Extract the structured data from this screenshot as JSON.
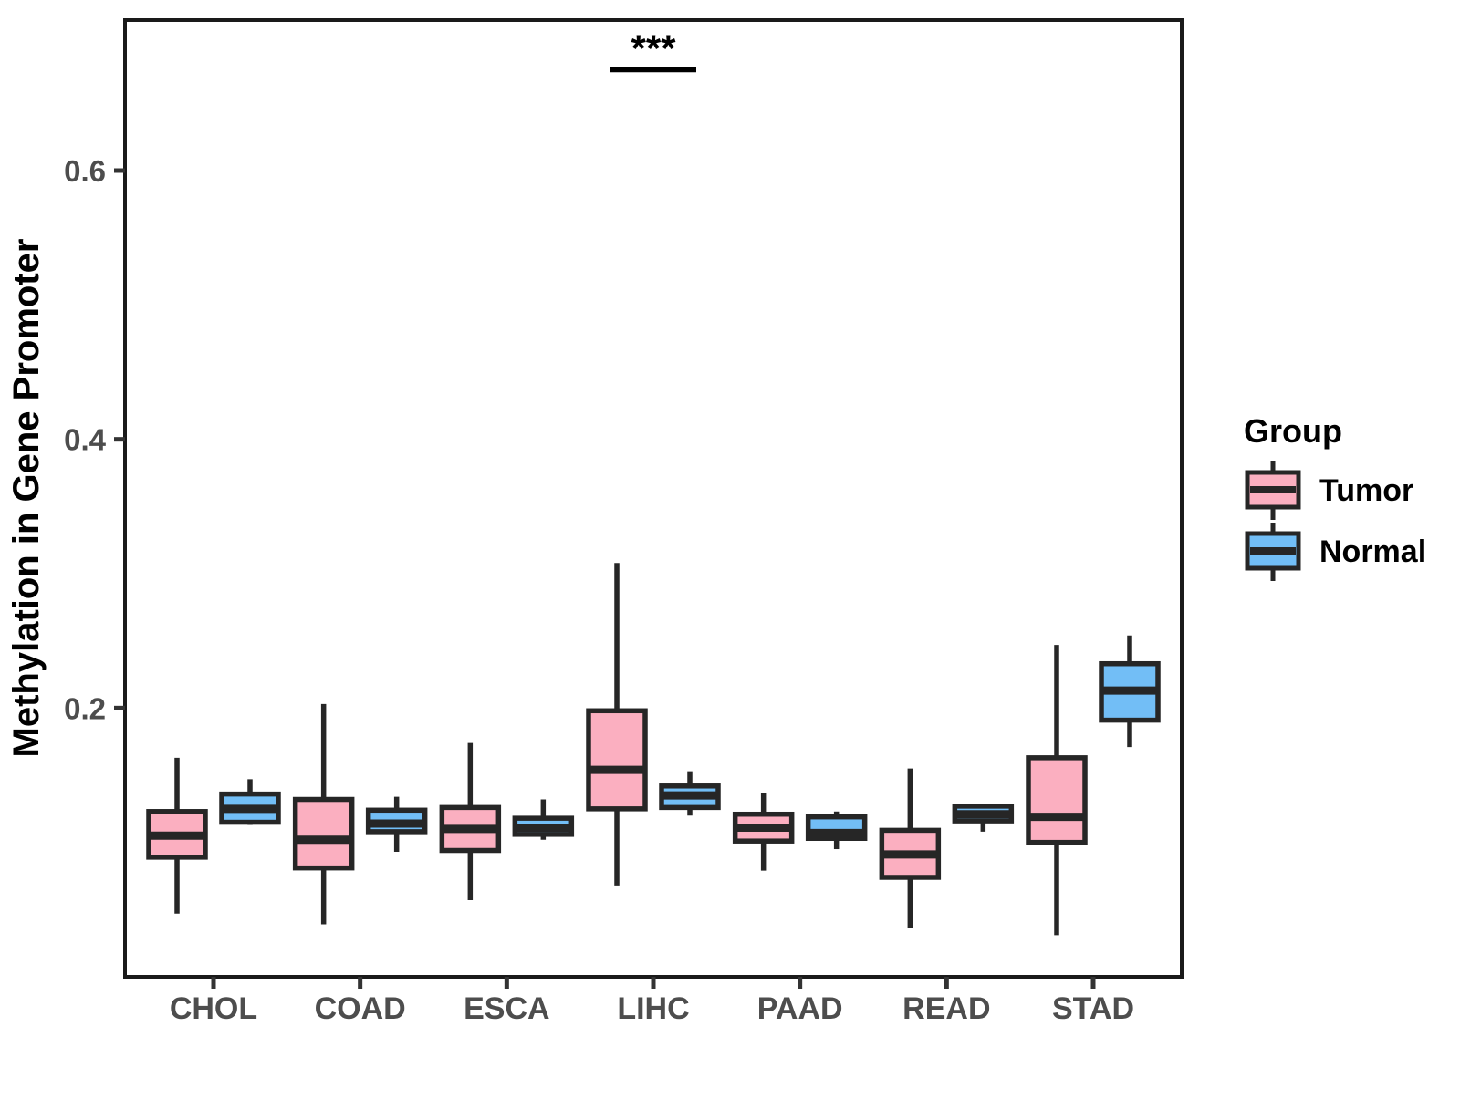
{
  "figure": {
    "background": "#ffffff",
    "panel_border_color": "#1a1a1a",
    "box_stroke_color": "#262626",
    "axis_text_color": "#4d4d4d"
  },
  "legend": {
    "title": "Group",
    "items": [
      {
        "label": "Tumor",
        "color": "#FBAFC0"
      },
      {
        "label": "Normal",
        "color": "#72BEF6"
      }
    ]
  },
  "chart_data": {
    "type": "boxplot",
    "title": "",
    "xlabel": "",
    "ylabel": "Methylation in Gene Promoter",
    "categories": [
      "CHOL",
      "COAD",
      "ESCA",
      "LIHC",
      "PAAD",
      "READ",
      "STAD"
    ],
    "yticks": [
      "0.2",
      "0.4",
      "0.6"
    ],
    "ytick_values": [
      0.2,
      0.4,
      0.6
    ],
    "ylim": [
      0,
      0.712
    ],
    "grid": false,
    "legend_position": "right",
    "whisker_caps": false,
    "series": [
      {
        "name": "Tumor",
        "color": "#FBAFC0",
        "values": [
          {
            "low": 0.047,
            "q1": 0.089,
            "median": 0.105,
            "q3": 0.123,
            "high": 0.163
          },
          {
            "low": 0.039,
            "q1": 0.081,
            "median": 0.102,
            "q3": 0.132,
            "high": 0.203
          },
          {
            "low": 0.057,
            "q1": 0.094,
            "median": 0.11,
            "q3": 0.126,
            "high": 0.174
          },
          {
            "low": 0.068,
            "q1": 0.125,
            "median": 0.154,
            "q3": 0.198,
            "high": 0.308
          },
          {
            "low": 0.079,
            "q1": 0.101,
            "median": 0.111,
            "q3": 0.121,
            "high": 0.137
          },
          {
            "low": 0.036,
            "q1": 0.074,
            "median": 0.091,
            "q3": 0.109,
            "high": 0.155
          },
          {
            "low": 0.031,
            "q1": 0.1,
            "median": 0.119,
            "q3": 0.163,
            "high": 0.247
          }
        ]
      },
      {
        "name": "Normal",
        "color": "#72BEF6",
        "values": [
          {
            "low": 0.113,
            "q1": 0.115,
            "median": 0.125,
            "q3": 0.136,
            "high": 0.147
          },
          {
            "low": 0.093,
            "q1": 0.108,
            "median": 0.114,
            "q3": 0.124,
            "high": 0.134
          },
          {
            "low": 0.102,
            "q1": 0.106,
            "median": 0.111,
            "q3": 0.118,
            "high": 0.132
          },
          {
            "low": 0.12,
            "q1": 0.126,
            "median": 0.135,
            "q3": 0.142,
            "high": 0.153
          },
          {
            "low": 0.095,
            "q1": 0.103,
            "median": 0.107,
            "q3": 0.119,
            "high": 0.123
          },
          {
            "low": 0.108,
            "q1": 0.116,
            "median": 0.121,
            "q3": 0.127,
            "high": 0.127
          },
          {
            "low": 0.171,
            "q1": 0.191,
            "median": 0.213,
            "q3": 0.233,
            "high": 0.254
          }
        ]
      }
    ],
    "significance": {
      "label": "***",
      "category": "LIHC",
      "y": 0.675
    }
  }
}
